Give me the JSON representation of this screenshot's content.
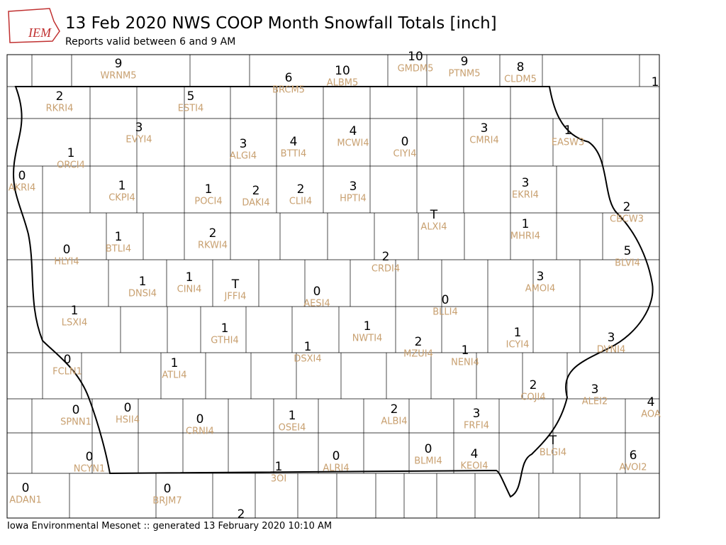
{
  "header": {
    "logo": "IEM",
    "title": "13 Feb 2020 NWS COOP Month Snowfall Totals [inch]",
    "subtitle": "Reports valid between 6 and 9 AM"
  },
  "footer": "Iowa Environmental Mesonet :: generated 13 February 2020 10:10 AM",
  "stations": [
    {
      "value": 9,
      "id": "WRNM5"
    },
    {
      "value": 6,
      "id": "BRCM5"
    },
    {
      "value": 10,
      "id": "ALBM5"
    },
    {
      "value": 10,
      "id": "GMDM5"
    },
    {
      "value": 9,
      "id": "PTNM5"
    },
    {
      "value": 8,
      "id": "CLDM5"
    },
    {
      "value": 1
    },
    {
      "value": 2,
      "id": "RKRI4"
    },
    {
      "value": 5,
      "id": "ESTI4"
    },
    {
      "value": 3,
      "id": "EVYI4"
    },
    {
      "value": 3,
      "id": "ALGI4"
    },
    {
      "value": 4,
      "id": "BTTI4"
    },
    {
      "value": 4,
      "id": "MCWI4"
    },
    {
      "value": 0,
      "id": "CIYI4"
    },
    {
      "value": 3,
      "id": "CMRI4"
    },
    {
      "value": 1,
      "id": "EASW3"
    },
    {
      "value": 1,
      "id": "ORCI4"
    },
    {
      "value": 0,
      "id": "AKRI4"
    },
    {
      "value": 1,
      "id": "CKPI4"
    },
    {
      "value": 1,
      "id": "POCI4"
    },
    {
      "value": 2,
      "id": "DAKI4"
    },
    {
      "value": 2,
      "id": "CLII4"
    },
    {
      "value": 3,
      "id": "HPTI4"
    },
    {
      "value": 3,
      "id": "EKRI4"
    },
    {
      "value": 2,
      "id": "CBCW3"
    },
    {
      "value": "T",
      "id": "ALXI4"
    },
    {
      "value": 1,
      "id": "MHRI4"
    },
    {
      "value": 1,
      "id": "BTLI4"
    },
    {
      "value": 2,
      "id": "RKWI4"
    },
    {
      "value": 0,
      "id": "HLYI4"
    },
    {
      "value": 2,
      "id": "CRDI4"
    },
    {
      "value": 5,
      "id": "BLVI4"
    },
    {
      "value": 3,
      "id": "AMOI4"
    },
    {
      "value": 1,
      "id": "DNSI4"
    },
    {
      "value": 1,
      "id": "CINI4"
    },
    {
      "value": "T",
      "id": "JFFI4"
    },
    {
      "value": 0,
      "id": "AESI4"
    },
    {
      "value": 0,
      "id": "BLLI4"
    },
    {
      "value": 1,
      "id": "LSXI4"
    },
    {
      "value": 1,
      "id": "GTHI4"
    },
    {
      "value": 1,
      "id": "NWTI4"
    },
    {
      "value": 1,
      "id": "ICYI4"
    },
    {
      "value": 3,
      "id": "DVNI4"
    },
    {
      "value": 2,
      "id": "MZUI4"
    },
    {
      "value": 1,
      "id": "DSXI4"
    },
    {
      "value": 1,
      "id": "NENI4"
    },
    {
      "value": 0,
      "id": "FCLN1"
    },
    {
      "value": 1,
      "id": "ATLI4"
    },
    {
      "value": 2,
      "id": "COJI4"
    },
    {
      "value": 3,
      "id": "ALEI2"
    },
    {
      "value": 4,
      "id": "AOA"
    },
    {
      "value": 0,
      "id": "SPNN1"
    },
    {
      "value": 0,
      "id": "HSII4"
    },
    {
      "value": 0,
      "id": "CRNI4"
    },
    {
      "value": 1,
      "id": "OSEI4"
    },
    {
      "value": 2,
      "id": "ALBI4"
    },
    {
      "value": 3,
      "id": "FRFI4"
    },
    {
      "value": "T",
      "id": "BLGI4"
    },
    {
      "value": 0,
      "id": "BLMI4"
    },
    {
      "value": 4,
      "id": "KEOI4"
    },
    {
      "value": 0,
      "id": "ALRI4"
    },
    {
      "value": 6,
      "id": "AVOI2"
    },
    {
      "value": 0,
      "id": "NCYN1"
    },
    {
      "value": 1,
      "id": "3OI"
    },
    {
      "value": 0,
      "id": "ADAN1"
    },
    {
      "value": 0,
      "id": "BRJM7"
    },
    {
      "value": 2
    }
  ]
}
